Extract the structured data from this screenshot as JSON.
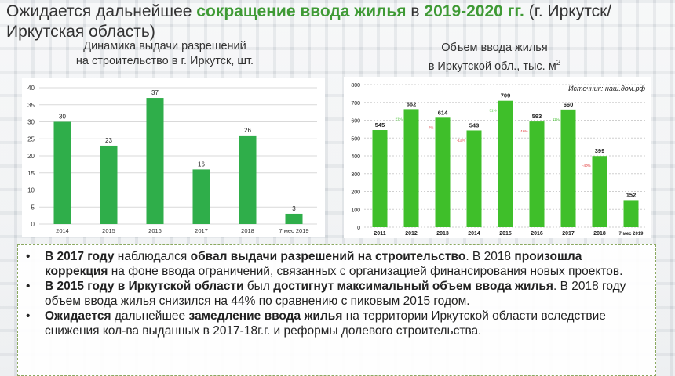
{
  "title": {
    "part1": "Ожидается дальнейшее ",
    "part2": "сокращение ввода жилья",
    "part3": " в ",
    "part4": "2019-2020 гг.",
    "part5": " (г. Иркутск/ Иркутская область)"
  },
  "chart_data": [
    {
      "type": "bar",
      "title_line1": "Динамика выдачи разрешений",
      "title_line2": "на строительство в г. Иркутск, шт.",
      "categories": [
        "2014",
        "2015",
        "2016",
        "2017",
        "2018",
        "7 мес 2019"
      ],
      "values": [
        30,
        23,
        37,
        16,
        26,
        3
      ],
      "ylim": [
        0,
        40
      ],
      "yticks": [
        "0",
        "5",
        "10",
        "15",
        "20",
        "25",
        "30",
        "35",
        "40"
      ],
      "grid": true,
      "color": "#2fae4a"
    },
    {
      "type": "bar",
      "title_line1": "Объем ввода жилья",
      "title_line2": "в Иркутской обл., тыс. м",
      "title_sup": "2",
      "source": "Источник: наш.дом.рф",
      "categories": [
        "2011",
        "2012",
        "2013",
        "2014",
        "2015",
        "2016",
        "2017",
        "2018",
        "7 мес 2019"
      ],
      "values": [
        545,
        662,
        614,
        543,
        709,
        593,
        660,
        399,
        152
      ],
      "ylim": [
        0,
        800
      ],
      "yticks": [
        "0",
        "100",
        "200",
        "300",
        "400",
        "500",
        "600",
        "700",
        "800"
      ],
      "grid": true,
      "color": "#3fbf2a",
      "changes": [
        "",
        "21%",
        "-7%",
        "-12%",
        "31%",
        "-16%",
        "11%",
        "-40%",
        ""
      ],
      "change_colors": [
        "",
        "#3fbf2a",
        "#e03030",
        "#e03030",
        "#3fbf2a",
        "#e03030",
        "#3fbf2a",
        "#e03030",
        ""
      ]
    }
  ],
  "bullets": [
    {
      "b1": "В 2017 году",
      "t1": " наблюдался ",
      "b2": "обвал выдачи разрешений на строительство",
      "t2": ". В 2018 ",
      "b3": "произошла коррекция",
      "t3": " на фоне ввода ограничений, связанных с организацией финансирования новых проектов."
    },
    {
      "b1": "В 2015 году в Иркутской области",
      "t1": " был ",
      "b2": "достигнут максимальный объем ввода жилья",
      "t2": ". В 2018 году объем ввода жилья снизился на 44% по сравнению с пиковым 2015 годом."
    },
    {
      "b1": "Ожидается",
      "t1": " дальнейшее ",
      "b2": "замедление ввода жилья",
      "t2": " на территории Иркутской области вследствие снижения кол-ва выданных в 2017-18г.г. и реформы долевого строительства."
    }
  ]
}
